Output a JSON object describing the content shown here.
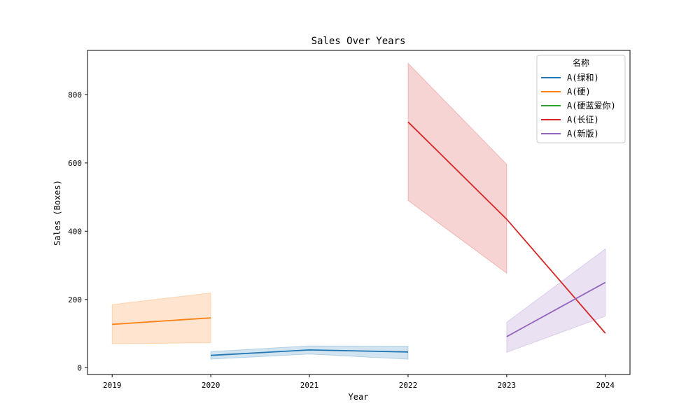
{
  "chart_data": {
    "type": "line",
    "title": "Sales Over Years",
    "xlabel": "Year",
    "ylabel": "Sales (Boxes)",
    "xlim": [
      2018.75,
      2024.25
    ],
    "ylim": [
      -20,
      930
    ],
    "x_ticks": [
      2019,
      2020,
      2021,
      2022,
      2023,
      2024
    ],
    "y_ticks": [
      0,
      200,
      400,
      600,
      800
    ],
    "grid": false,
    "legend": {
      "title": "名称",
      "placement": "top-right"
    },
    "series": [
      {
        "name": "A(绿和)",
        "color": "#1f77b4",
        "x": [
          2020,
          2021,
          2022
        ],
        "y": [
          36,
          52,
          46
        ],
        "lower": [
          25,
          40,
          25
        ],
        "upper": [
          47,
          64,
          63
        ]
      },
      {
        "name": "A(硬)",
        "color": "#ff7f0e",
        "x": [
          2019,
          2020
        ],
        "y": [
          127,
          146
        ],
        "lower": [
          70,
          73
        ],
        "upper": [
          185,
          219
        ]
      },
      {
        "name": "A(硬蓝爱你)",
        "color": "#2ca02c",
        "x": [],
        "y": [],
        "lower": [],
        "upper": []
      },
      {
        "name": "A(长征)",
        "color": "#d62728",
        "x": [
          2022,
          2023,
          2024
        ],
        "y": [
          720,
          435,
          101
        ],
        "lower": [
          490,
          277,
          null
        ],
        "upper": [
          892,
          596,
          null
        ]
      },
      {
        "name": "A(新版)",
        "color": "#9467bd",
        "x": [
          2023,
          2024
        ],
        "y": [
          91,
          250
        ],
        "lower": [
          45,
          151
        ],
        "upper": [
          133,
          348
        ]
      }
    ]
  }
}
